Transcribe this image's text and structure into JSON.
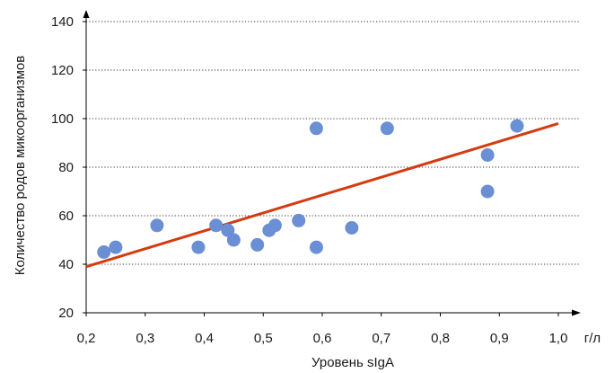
{
  "chart_data": {
    "type": "scatter",
    "xlabel": "Уровень sIgA",
    "ylabel": "Количество родов микоорганизмов",
    "x_unit": "г/л",
    "xlim": [
      0.2,
      1.0
    ],
    "ylim": [
      20,
      140
    ],
    "x_ticks": [
      "0,2",
      "0,3",
      "0,4",
      "0,5",
      "0,6",
      "0,7",
      "0,8",
      "0,9",
      "1,0"
    ],
    "x_tick_values": [
      0.2,
      0.3,
      0.4,
      0.5,
      0.6,
      0.7,
      0.8,
      0.9,
      1.0
    ],
    "y_ticks": [
      "20",
      "40",
      "60",
      "80",
      "100",
      "120",
      "140"
    ],
    "y_tick_values": [
      20,
      40,
      60,
      80,
      100,
      120,
      140
    ],
    "grid": "horizontal dotted",
    "points": [
      {
        "x": 0.23,
        "y": 45
      },
      {
        "x": 0.25,
        "y": 47
      },
      {
        "x": 0.32,
        "y": 56
      },
      {
        "x": 0.39,
        "y": 47
      },
      {
        "x": 0.42,
        "y": 56
      },
      {
        "x": 0.44,
        "y": 54
      },
      {
        "x": 0.45,
        "y": 50
      },
      {
        "x": 0.49,
        "y": 48
      },
      {
        "x": 0.51,
        "y": 54
      },
      {
        "x": 0.52,
        "y": 56
      },
      {
        "x": 0.56,
        "y": 58
      },
      {
        "x": 0.59,
        "y": 96
      },
      {
        "x": 0.59,
        "y": 47
      },
      {
        "x": 0.65,
        "y": 55
      },
      {
        "x": 0.71,
        "y": 96
      },
      {
        "x": 0.88,
        "y": 85
      },
      {
        "x": 0.88,
        "y": 70
      },
      {
        "x": 0.93,
        "y": 97
      }
    ],
    "trendline": {
      "x": [
        0.2,
        1.0
      ],
      "y": [
        39,
        98
      ]
    },
    "colors": {
      "points": "#6b8fd4",
      "trendline": "#d63a10"
    }
  }
}
